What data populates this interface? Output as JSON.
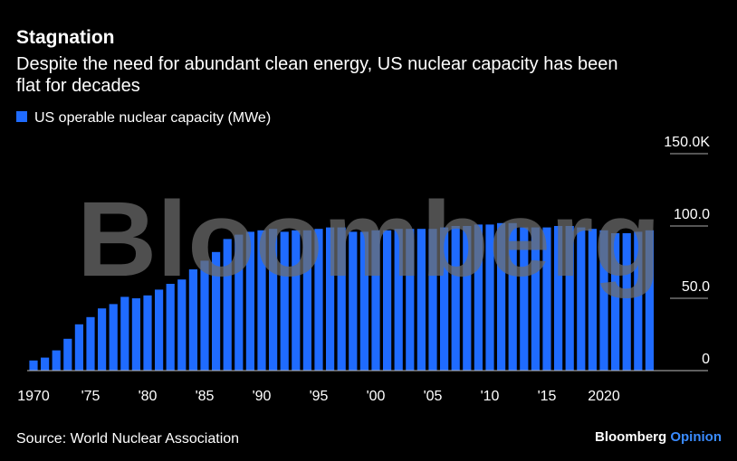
{
  "chart_data": {
    "type": "bar",
    "title": "Stagnation",
    "subtitle": "Despite the need for abundant clean energy, US nuclear capacity has been flat for decades",
    "legend": "US operable nuclear capacity (MWe)",
    "watermark": "Bloomberg",
    "source": "Source: World Nuclear Association",
    "brand": [
      "Bloomberg",
      "Opinion"
    ],
    "color": "#1f6bff",
    "categories": [
      "1970",
      null,
      null,
      null,
      null,
      "'75",
      null,
      null,
      null,
      null,
      "'80",
      null,
      null,
      null,
      null,
      "'85",
      null,
      null,
      null,
      null,
      "'90",
      null,
      null,
      null,
      null,
      "'95",
      null,
      null,
      null,
      null,
      "'00",
      null,
      null,
      null,
      null,
      "'05",
      null,
      null,
      null,
      null,
      "'10",
      null,
      null,
      null,
      null,
      "'15",
      null,
      null,
      null,
      null,
      "2020",
      null,
      null,
      null,
      null
    ],
    "values": [
      7,
      9,
      14,
      22,
      32,
      37,
      43,
      46,
      51,
      50,
      52,
      56,
      60,
      63,
      70,
      76,
      82,
      91,
      94,
      96,
      97,
      98,
      96,
      97,
      97,
      98,
      99,
      99,
      96,
      96,
      97,
      97,
      98,
      98,
      98,
      98,
      99,
      100,
      100,
      101,
      101,
      102,
      102,
      99,
      99,
      99,
      100,
      100,
      99,
      98,
      97,
      95,
      95,
      96,
      97
    ],
    "ylim": [
      0,
      150
    ],
    "yticks": [
      0,
      {
        "value": 50,
        "label": "50.0"
      },
      {
        "value": 100,
        "label": "100.0"
      },
      {
        "value": 150,
        "label": "150.0K"
      }
    ]
  }
}
